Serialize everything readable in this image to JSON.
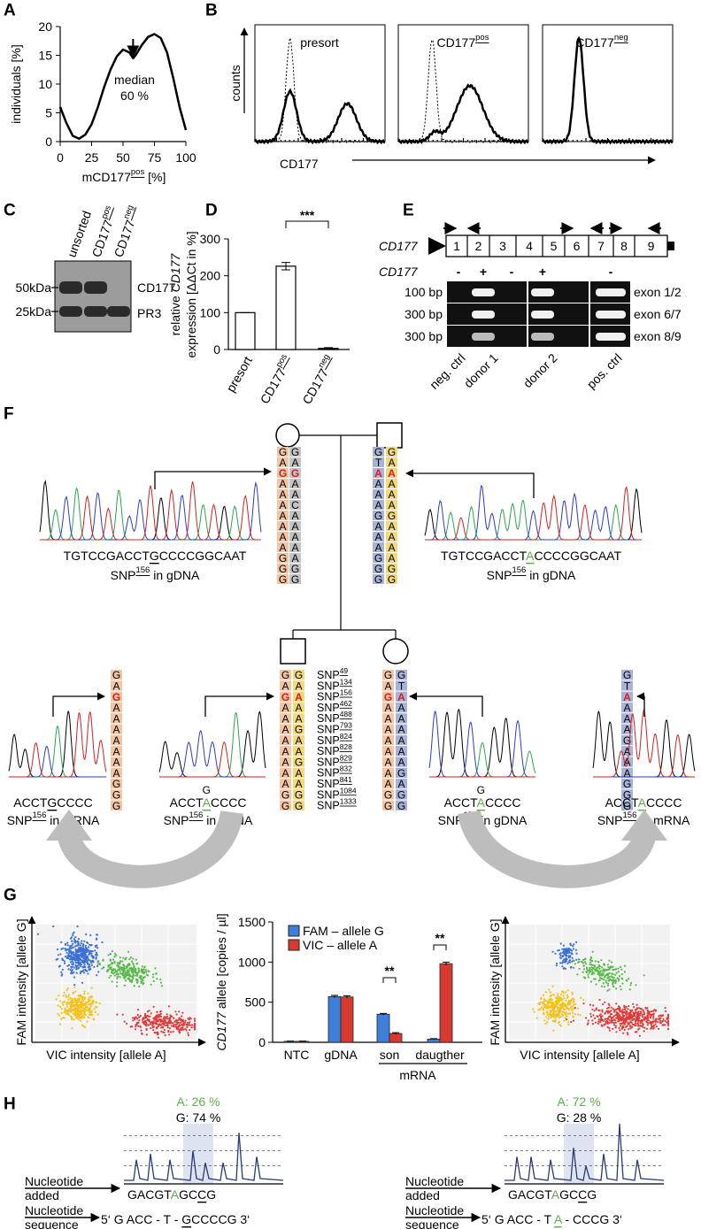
{
  "panel_labels": [
    "A",
    "B",
    "C",
    "D",
    "E",
    "F",
    "G",
    "H"
  ],
  "chart_data": [
    {
      "type": "line",
      "ylabel": "individuals [%]",
      "xlabel": [
        "mCD177",
        "pos",
        " [%]"
      ],
      "x": [
        0,
        5,
        10,
        15,
        20,
        25,
        30,
        35,
        40,
        45,
        50,
        55,
        58,
        60,
        65,
        70,
        75,
        80,
        85,
        90,
        95,
        100
      ],
      "y": [
        6,
        3.2,
        1,
        0.5,
        1.2,
        3,
        6,
        9.5,
        12.5,
        14.8,
        16,
        15.5,
        14.5,
        15,
        16.8,
        18.2,
        18.7,
        18,
        15.5,
        11,
        6,
        2
      ],
      "xlim": [
        0,
        100
      ],
      "ylim": [
        0,
        20
      ],
      "xticks": [
        0,
        25,
        50,
        75,
        100
      ],
      "yticks": [
        0,
        5,
        10,
        15,
        20
      ],
      "color": "#000000",
      "annotation": [
        "median",
        "60 %"
      ]
    },
    {
      "type": "bar",
      "ylabel": [
        [
          "relative ",
          "CD177"
        ],
        [
          "expression [ΔΔCt in %]"
        ]
      ],
      "categories": [
        [
          "presort"
        ],
        [
          "CD177",
          "pos"
        ],
        [
          "CD177",
          "neg"
        ]
      ],
      "values": [
        100,
        226,
        3
      ],
      "errors": [
        0,
        10,
        2
      ],
      "ylim": [
        0,
        300
      ],
      "yticks": [
        0,
        100,
        200,
        300
      ],
      "color": "#ffffff",
      "significance": "***"
    },
    {
      "type": "grouped_bar",
      "ylabel": [
        "CD177",
        " allele [copies / µl]"
      ],
      "categories": [
        "NTC",
        "gDNA",
        "son",
        "daugther"
      ],
      "group_label": "mRNA",
      "series": [
        {
          "name": "FAM – allele G",
          "color": "#3d7fd9",
          "values": [
            12,
            570,
            350,
            40
          ],
          "errors": [
            3,
            15,
            10,
            5
          ]
        },
        {
          "name": "VIC – allele A",
          "color": "#d93a2f",
          "values": [
            12,
            565,
            110,
            980
          ],
          "errors": [
            3,
            15,
            10,
            20
          ]
        }
      ],
      "ylim": [
        0,
        1500
      ],
      "yticks": [
        0,
        500,
        1000,
        1500
      ],
      "significance": [
        "**",
        "**"
      ]
    }
  ],
  "panel_b": {
    "samples": [
      "presort",
      [
        "CD177",
        "pos"
      ],
      [
        "CD177",
        "neg"
      ]
    ],
    "ylabel": "counts",
    "xlabel": "CD177"
  },
  "panel_c": {
    "lanes": [
      "unsorted",
      [
        "CD177",
        "pos"
      ],
      [
        "CD177",
        "neg"
      ]
    ],
    "markers": [
      "50kDa",
      "25kDa"
    ],
    "bands": [
      "CD177",
      "PR3"
    ]
  },
  "panel_e": {
    "gene": "CD177",
    "exons": [
      "1",
      "2",
      "3",
      "4",
      "5",
      "6",
      "7",
      "8",
      "9"
    ],
    "row_label": "CD177",
    "signs": [
      "-",
      "+",
      "-",
      "+",
      "-"
    ],
    "sizes": [
      "100 bp",
      "300 bp",
      "300 bp"
    ],
    "products": [
      "exon 1/2",
      "exon 6/7",
      "exon 8/9"
    ],
    "lanes": [
      "neg. ctrl",
      "donor 1",
      "donor 2",
      "pos. ctrl"
    ]
  },
  "panel_f": {
    "genotypes": {
      "mother": [
        [
          "G",
          "A",
          "G",
          "A",
          "A",
          "A",
          "A",
          "A",
          "A",
          "A",
          "G",
          "G",
          "G"
        ],
        [
          "G",
          "A",
          "G",
          "A",
          "A",
          "C",
          "A",
          "A",
          "A",
          "A",
          "A",
          "G",
          "G"
        ]
      ],
      "father": [
        [
          "G",
          "T",
          "A",
          "A",
          "A",
          "A",
          "G",
          "A",
          "A",
          "A",
          "G",
          "G",
          "G"
        ],
        [
          "G",
          "A",
          "A",
          "A",
          "A",
          "A",
          "G",
          "A",
          "A",
          "A",
          "A",
          "G",
          "G"
        ]
      ],
      "son": [
        [
          "G",
          "A",
          "G",
          "A",
          "A",
          "A",
          "A",
          "A",
          "A",
          "A",
          "A",
          "G",
          "G"
        ],
        [
          "G",
          "A",
          "A",
          "A",
          "A",
          "G",
          "A",
          "A",
          "G",
          "A",
          "A",
          "G",
          "G"
        ]
      ],
      "daughter": [
        [
          "G",
          "A",
          "G",
          "A",
          "A",
          "A",
          "A",
          "A",
          "A",
          "A",
          "A",
          "G",
          "G"
        ],
        [
          "G",
          "T",
          "A",
          "A",
          "A",
          "A",
          "A",
          "A",
          "A",
          "G",
          "A",
          "G",
          "G"
        ]
      ],
      "son_mrna": [
        "G",
        "A",
        "G",
        "A",
        "A",
        "A",
        "A",
        "A",
        "A",
        "A",
        "G",
        "G",
        "G"
      ],
      "daughter_mrna": [
        "G",
        "T",
        "A",
        "A",
        "A",
        "A",
        "G",
        "A",
        "A",
        "A",
        "G",
        "G",
        "G"
      ]
    },
    "snps": [
      [
        "SNP",
        "49"
      ],
      [
        "SNP",
        "134"
      ],
      [
        "SNP",
        "156"
      ],
      [
        "SNP",
        "462"
      ],
      [
        "SNP",
        "488"
      ],
      [
        "SNP",
        "793"
      ],
      [
        "SNP",
        "824"
      ],
      [
        "SNP",
        "828"
      ],
      [
        "SNP",
        "829"
      ],
      [
        "SNP",
        "832"
      ],
      [
        "SNP",
        "841"
      ],
      [
        "SNP",
        "1084"
      ],
      [
        "SNP",
        "1333"
      ]
    ],
    "chromatograms": [
      {
        "seq": [
          "TGTCCGACCT",
          "G",
          "CCCCGGCAAT"
        ],
        "label": [
          "SNP",
          "156",
          " in gDNA"
        ]
      },
      {
        "seq": [
          "TGTCCGACCT",
          "A",
          "CCCCGGCAAT"
        ],
        "label": [
          "SNP",
          "156",
          " in gDNA"
        ]
      },
      {
        "seq": [
          "ACCT",
          "G",
          "CCCC"
        ],
        "label": [
          "SNP",
          "156",
          " in mRNA"
        ]
      },
      {
        "seq": [
          "ACCT",
          "A",
          "CCCC"
        ],
        "top": "G",
        "label": [
          "SNP",
          "156",
          " in gDNA"
        ]
      },
      {
        "seq": [
          "ACCT",
          "A",
          "CCCC"
        ],
        "top": "G",
        "label": [
          "SNP",
          "156",
          " in gDNA"
        ]
      },
      {
        "seq": [
          "ACCT",
          "A",
          "CCCC"
        ],
        "label": [
          "SNP",
          "156",
          " in mRNA"
        ]
      }
    ]
  },
  "panel_g": {
    "scatter_ylabel": "FAM intensity [allele G]",
    "scatter_xlabel": "VIC intensity [allele A]"
  },
  "panel_h": {
    "added_label": [
      "Nucleotide",
      "added"
    ],
    "sequence_label": [
      "Nucleotide",
      "sequence"
    ],
    "samples": [
      {
        "a": "A: 26 %",
        "g": "G: 74 %",
        "added": [
          "GACGT",
          "A",
          "GC",
          "C",
          "G"
        ],
        "sequence": [
          "5‘ G ACC - T - ",
          "G",
          "CCCCG 3‘"
        ]
      },
      {
        "a": "A: 72 %",
        "g": "G: 28 %",
        "added": [
          "GACGT",
          "A",
          "GC",
          "C",
          "G"
        ],
        "sequence": [
          "5‘ G ACC - T ",
          "A",
          " - CCCG 3‘"
        ]
      }
    ]
  }
}
